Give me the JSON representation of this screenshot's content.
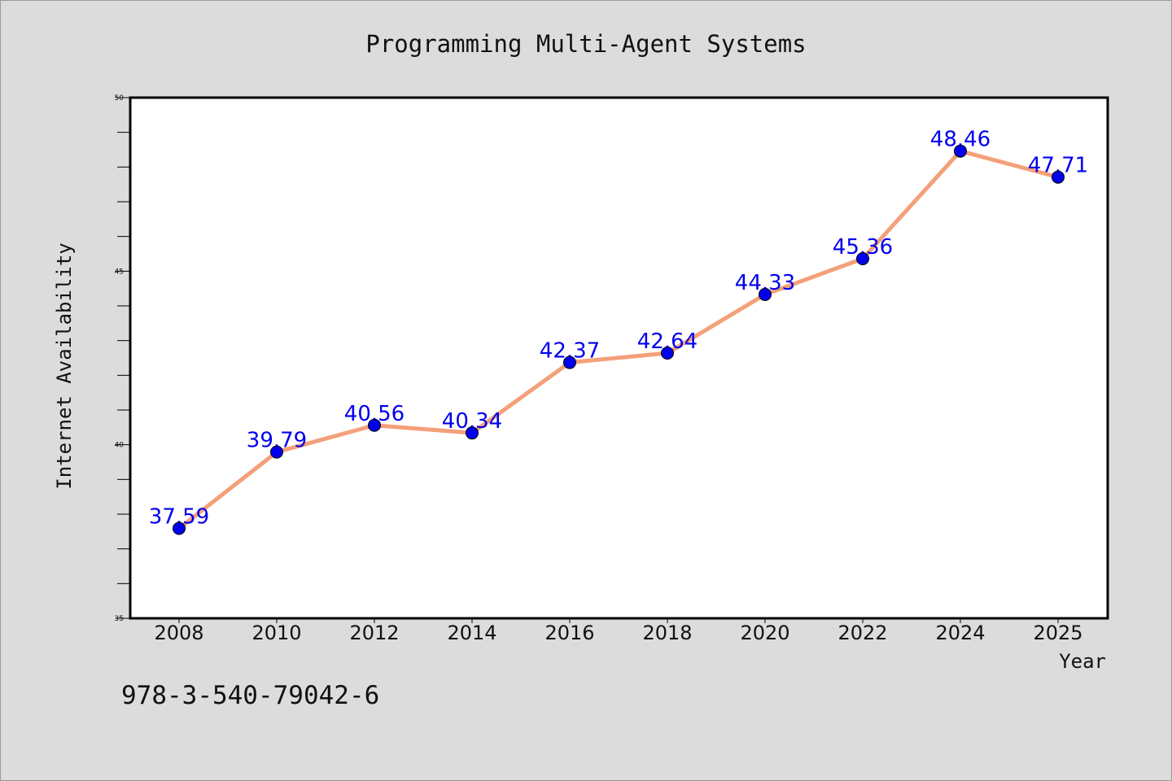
{
  "chart_data": {
    "type": "line",
    "title": "Programming Multi-Agent Systems",
    "xlabel": "Year",
    "ylabel": "Internet Availability",
    "categories": [
      "2008",
      "2010",
      "2012",
      "2014",
      "2016",
      "2018",
      "2020",
      "2022",
      "2024",
      "2025"
    ],
    "series": [
      {
        "values": [
          37.59,
          39.79,
          40.56,
          40.34,
          42.37,
          42.64,
          44.33,
          45.36,
          48.46,
          47.71
        ]
      }
    ],
    "ylim": [
      35,
      50
    ],
    "yticks": [
      "35",
      "40",
      "45",
      "50"
    ],
    "grid": false,
    "legend": "none",
    "line_color": "#f4a07a",
    "marker_color": "#0000ee",
    "label_color": "#0000ee"
  },
  "footer": {
    "isbn": "978-3-540-79042-6"
  }
}
